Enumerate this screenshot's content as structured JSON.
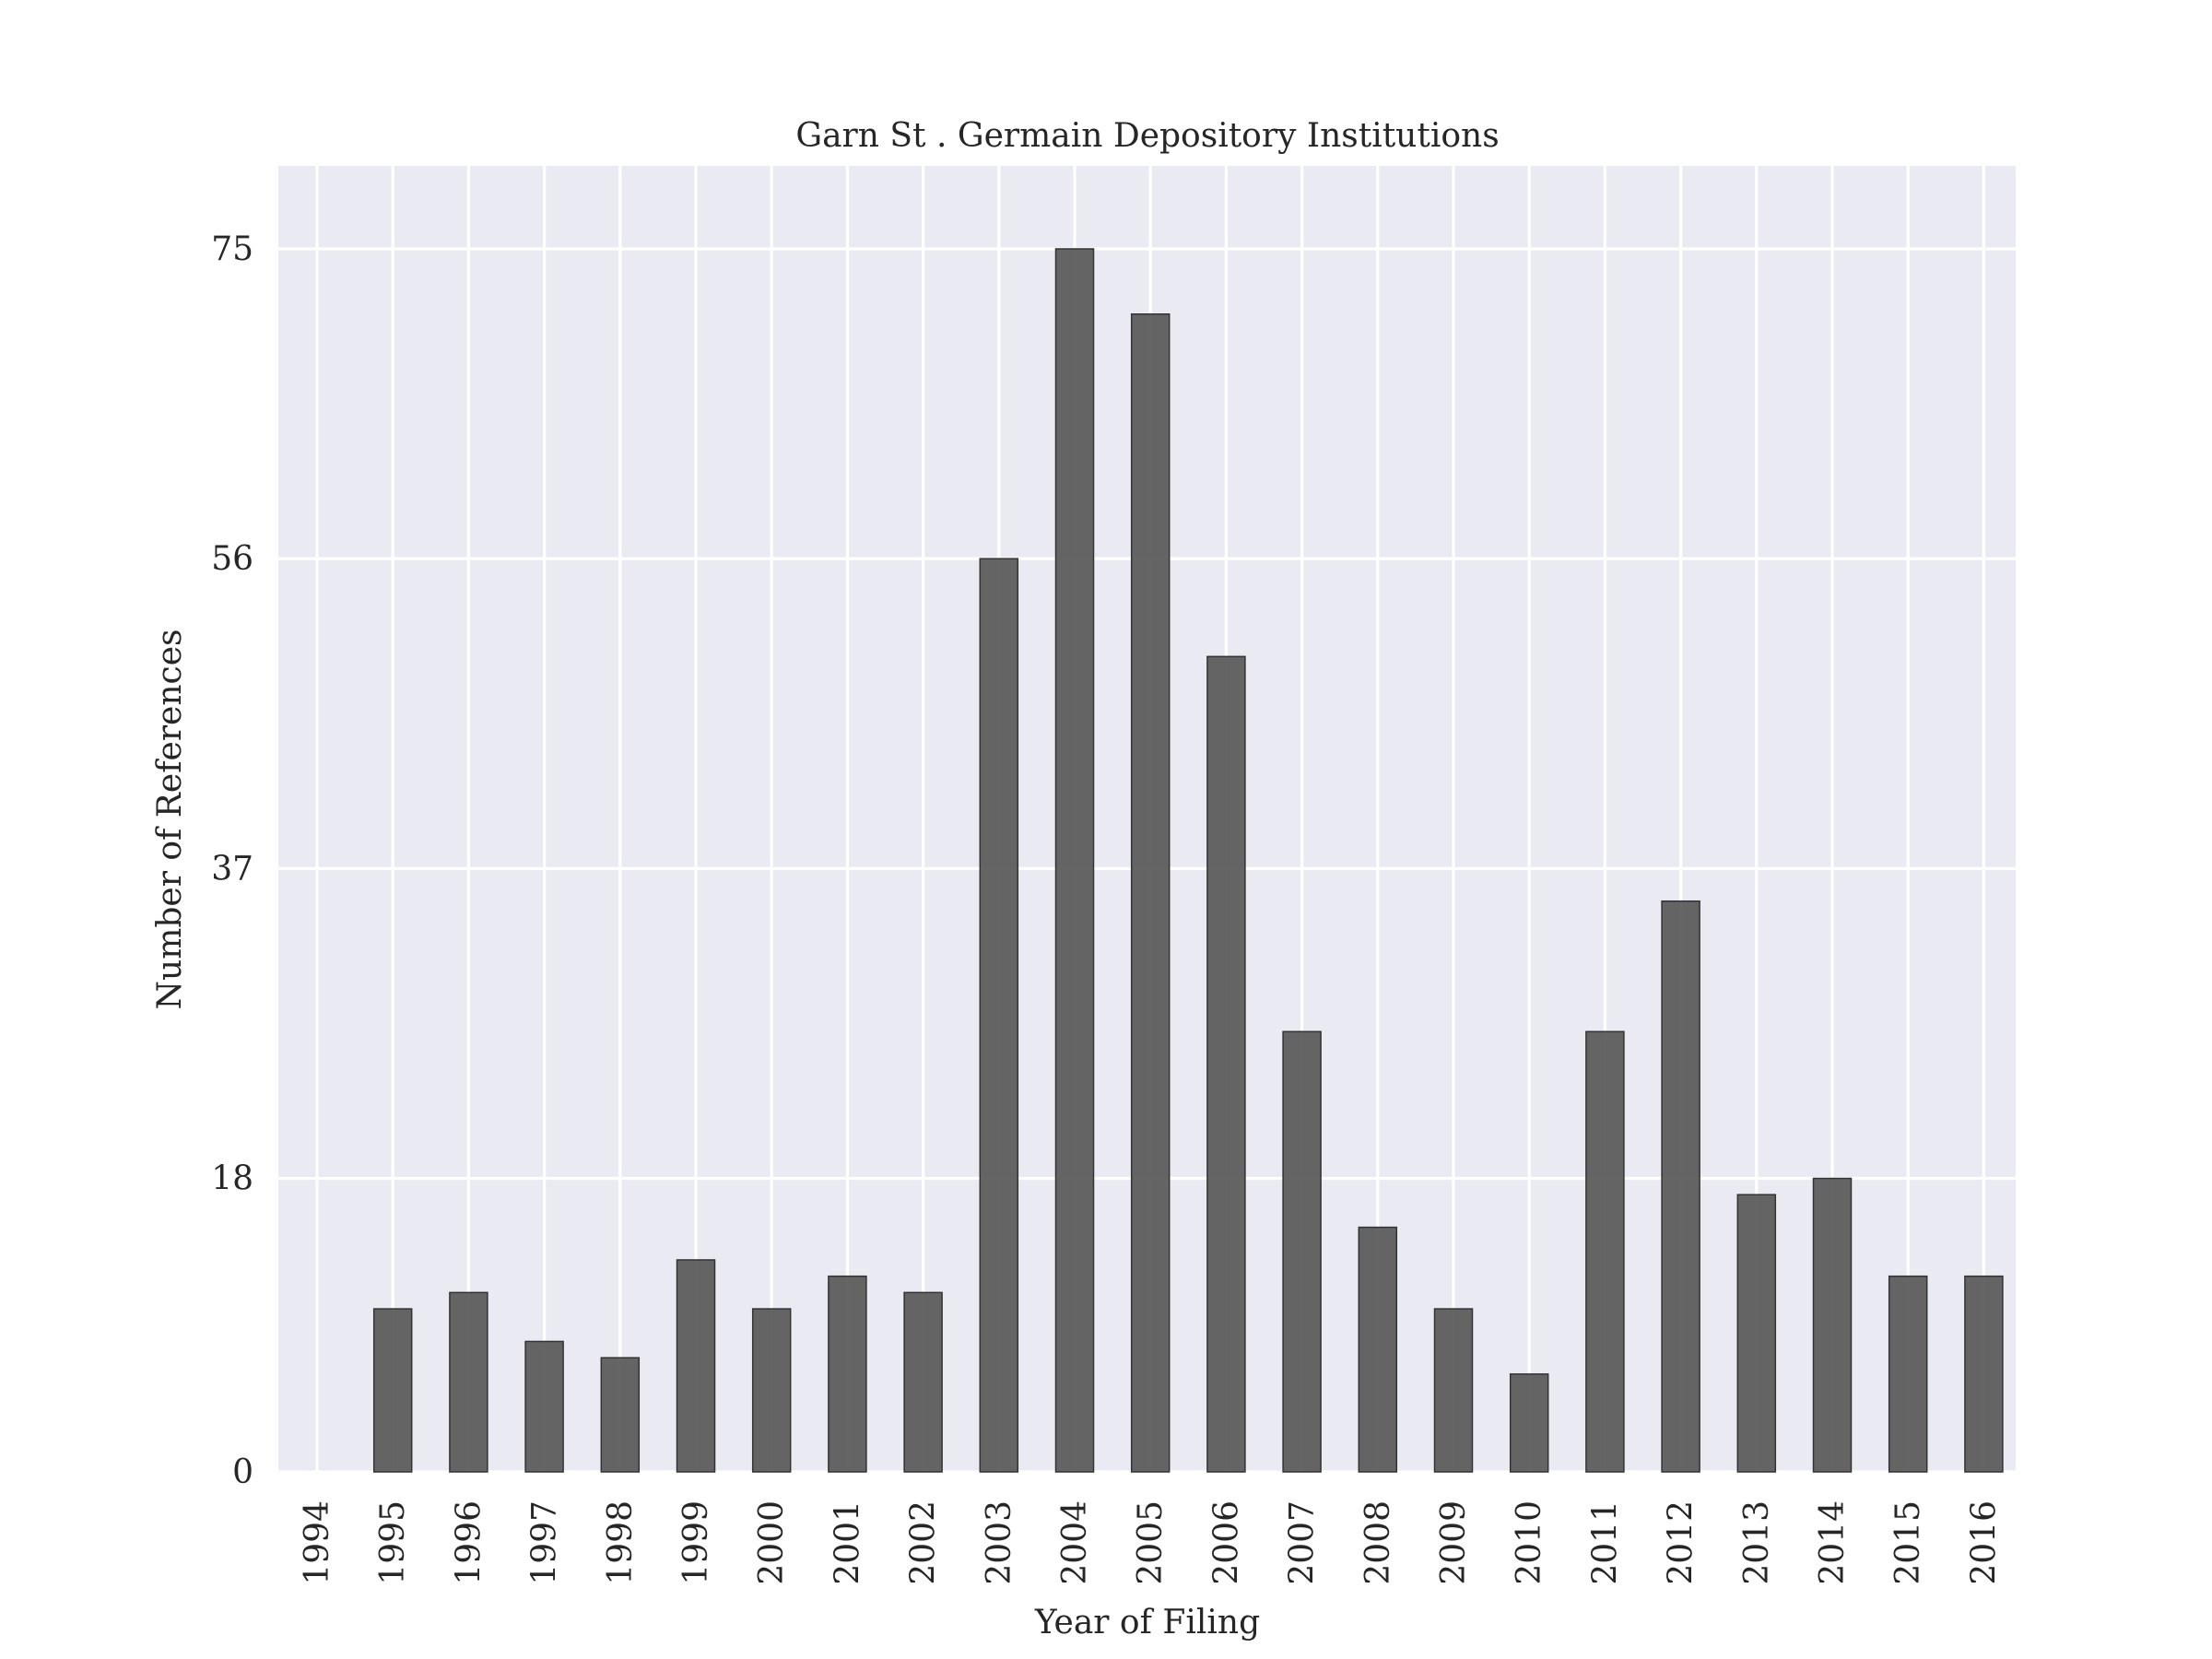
{
  "chart_data": {
    "type": "bar",
    "title": "Garn St . Germain Depository Institutions",
    "xlabel": "Year of Filing",
    "ylabel": "Number of References",
    "categories": [
      "1994",
      "1995",
      "1996",
      "1997",
      "1998",
      "1999",
      "2000",
      "2001",
      "2002",
      "2003",
      "2004",
      "2005",
      "2006",
      "2007",
      "2008",
      "2009",
      "2010",
      "2011",
      "2012",
      "2013",
      "2014",
      "2015",
      "2016"
    ],
    "values": [
      0,
      10,
      11,
      8,
      7,
      13,
      10,
      12,
      11,
      56,
      75,
      71,
      50,
      27,
      15,
      10,
      6,
      27,
      35,
      17,
      18,
      12,
      12
    ],
    "yticks": [
      0,
      18,
      37,
      56,
      75
    ],
    "ylim": [
      0,
      80
    ],
    "grid": true,
    "bar_color": "#595959",
    "background_color": "#eaeaf2"
  }
}
